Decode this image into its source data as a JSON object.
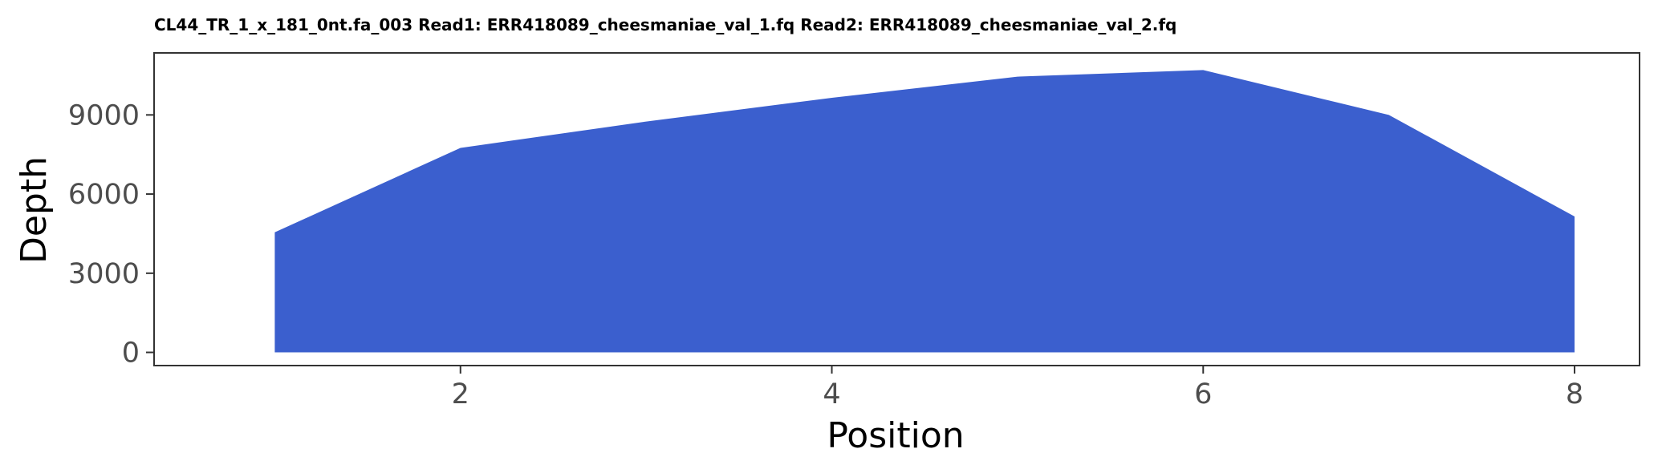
{
  "chart_data": {
    "type": "area",
    "title": "CL44_TR_1_x_181_0nt.fa_003 Read1: ERR418089_cheesmaniae_val_1.fq Read2: ERR418089_cheesmaniae_val_2.fq",
    "xlabel": "Position",
    "ylabel": "Depth",
    "x": [
      1,
      2,
      3,
      4,
      5,
      6,
      7,
      8
    ],
    "series": [
      {
        "values": [
          4550,
          7750,
          8750,
          9650,
          10450,
          10700,
          9000,
          5150
        ]
      }
    ],
    "xlim": [
      0.35,
      8.35
    ],
    "ylim": [
      -500,
      11350
    ],
    "x_ticks": [
      2,
      4,
      6,
      8
    ],
    "y_ticks": [
      0,
      3000,
      6000,
      9000
    ],
    "x_tick_labels": [
      "2",
      "4",
      "6",
      "8"
    ],
    "y_tick_labels": [
      "0",
      "3000",
      "6000",
      "9000"
    ],
    "grid": false,
    "legend": "none",
    "fill_color": "#3b5fce",
    "panel_border_color": "#333333",
    "tick_color": "#333333"
  }
}
